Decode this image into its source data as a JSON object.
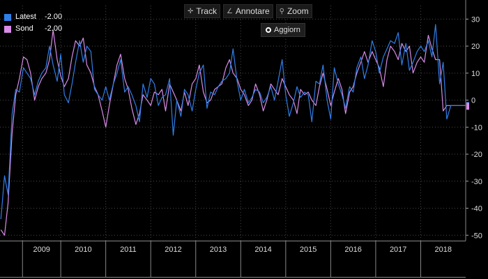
{
  "legend": {
    "items": [
      {
        "name": "Latest",
        "value": "-2.00",
        "color": "#2f7fe8"
      },
      {
        "name": "Sond",
        "value": "-2.00",
        "color": "#d98ce8"
      }
    ]
  },
  "toolbar": {
    "track_label": "Track",
    "annotate_label": "Annotare",
    "zoom_label": "Zoom",
    "refresh_label": "Aggiorn"
  },
  "chart_data": {
    "type": "line",
    "title": "",
    "xlabel": "",
    "ylabel": "",
    "ylim": [
      -52,
      35
    ],
    "yticks": [
      30,
      20,
      10,
      0,
      -10,
      -20,
      -30,
      -40,
      -50
    ],
    "xlim": [
      2008.65,
      2019.0
    ],
    "year_labels": [
      "2009",
      "2010",
      "2011",
      "2012",
      "2013",
      "2014",
      "2015",
      "2016",
      "2017",
      "2018"
    ],
    "year_boundaries": [
      2009.15,
      2010.0,
      2011.0,
      2012.0,
      2013.0,
      2014.0,
      2015.0,
      2016.0,
      2017.0,
      2018.0
    ],
    "grid": true,
    "series": [
      {
        "name": "Latest",
        "color": "#2f7fe8",
        "x": [
          2008.67,
          2008.75,
          2008.83,
          2008.92,
          2009.0,
          2009.08,
          2009.17,
          2009.25,
          2009.33,
          2009.42,
          2009.5,
          2009.58,
          2009.67,
          2009.75,
          2009.83,
          2009.92,
          2010.0,
          2010.08,
          2010.17,
          2010.25,
          2010.33,
          2010.42,
          2010.5,
          2010.58,
          2010.67,
          2010.75,
          2010.83,
          2010.92,
          2011.0,
          2011.08,
          2011.17,
          2011.25,
          2011.33,
          2011.42,
          2011.5,
          2011.58,
          2011.67,
          2011.75,
          2011.83,
          2011.92,
          2012.0,
          2012.08,
          2012.17,
          2012.25,
          2012.33,
          2012.42,
          2012.5,
          2012.58,
          2012.67,
          2012.75,
          2012.83,
          2012.92,
          2013.0,
          2013.08,
          2013.17,
          2013.25,
          2013.33,
          2013.42,
          2013.5,
          2013.58,
          2013.67,
          2013.75,
          2013.83,
          2013.92,
          2014.0,
          2014.08,
          2014.17,
          2014.25,
          2014.33,
          2014.42,
          2014.5,
          2014.58,
          2014.67,
          2014.75,
          2014.83,
          2014.92,
          2015.0,
          2015.08,
          2015.17,
          2015.25,
          2015.33,
          2015.42,
          2015.5,
          2015.58,
          2015.67,
          2015.75,
          2015.83,
          2015.92,
          2016.0,
          2016.08,
          2016.17,
          2016.25,
          2016.33,
          2016.42,
          2016.5,
          2016.58,
          2016.67,
          2016.75,
          2016.83,
          2016.92,
          2017.0,
          2017.08,
          2017.17,
          2017.25,
          2017.33,
          2017.42,
          2017.5,
          2017.58,
          2017.67,
          2017.75,
          2017.83,
          2017.92,
          2018.0,
          2018.08,
          2018.17,
          2018.25,
          2018.33,
          2018.42,
          2018.5,
          2018.58,
          2018.67,
          2018.75,
          2018.83,
          2018.92,
          2019.0
        ],
        "values": [
          -44,
          -28,
          -35,
          -5,
          4,
          3,
          12,
          10,
          8,
          2,
          7,
          10,
          12,
          20,
          13,
          7,
          17,
          2,
          -1,
          6,
          14,
          22,
          14,
          20,
          18,
          4,
          2,
          0,
          5,
          0,
          6,
          10,
          15,
          3,
          5,
          2,
          -2,
          -8,
          6,
          1,
          8,
          6,
          -2,
          1,
          2,
          8,
          -13,
          0,
          -6,
          4,
          2,
          -4,
          4,
          10,
          13,
          -3,
          3,
          2,
          5,
          7,
          8,
          10,
          19,
          7,
          0,
          4,
          -1,
          1,
          4,
          3,
          -1,
          1,
          5,
          0,
          7,
          15,
          2,
          -6,
          -1,
          5,
          1,
          3,
          2,
          -8,
          7,
          6,
          13,
          0,
          -7,
          12,
          6,
          2,
          -3,
          5,
          3,
          12,
          16,
          8,
          13,
          22,
          18,
          10,
          16,
          19,
          22,
          21,
          25,
          13,
          21,
          11,
          14,
          18,
          20,
          18,
          22,
          16,
          28,
          6,
          14,
          -7,
          -2,
          -2,
          -2,
          -2,
          -2
        ],
        "latest": -2.0
      },
      {
        "name": "Sond",
        "color": "#d98ce8",
        "x": [
          2008.67,
          2008.75,
          2008.83,
          2008.92,
          2009.0,
          2009.08,
          2009.17,
          2009.25,
          2009.33,
          2009.42,
          2009.5,
          2009.58,
          2009.67,
          2009.75,
          2009.83,
          2009.92,
          2010.0,
          2010.08,
          2010.17,
          2010.25,
          2010.33,
          2010.42,
          2010.5,
          2010.58,
          2010.67,
          2010.75,
          2010.83,
          2010.92,
          2011.0,
          2011.08,
          2011.17,
          2011.25,
          2011.33,
          2011.42,
          2011.5,
          2011.58,
          2011.67,
          2011.75,
          2011.83,
          2011.92,
          2012.0,
          2012.08,
          2012.17,
          2012.25,
          2012.33,
          2012.42,
          2012.5,
          2012.58,
          2012.67,
          2012.75,
          2012.83,
          2012.92,
          2013.0,
          2013.08,
          2013.17,
          2013.25,
          2013.33,
          2013.42,
          2013.5,
          2013.58,
          2013.67,
          2013.75,
          2013.83,
          2013.92,
          2014.0,
          2014.08,
          2014.17,
          2014.25,
          2014.33,
          2014.42,
          2014.5,
          2014.58,
          2014.67,
          2014.75,
          2014.83,
          2014.92,
          2015.0,
          2015.08,
          2015.17,
          2015.25,
          2015.33,
          2015.42,
          2015.5,
          2015.58,
          2015.67,
          2015.75,
          2015.83,
          2015.92,
          2016.0,
          2016.08,
          2016.17,
          2016.25,
          2016.33,
          2016.42,
          2016.5,
          2016.58,
          2016.67,
          2016.75,
          2016.83,
          2016.92,
          2017.0,
          2017.08,
          2017.17,
          2017.25,
          2017.33,
          2017.42,
          2017.5,
          2017.58,
          2017.67,
          2017.75,
          2017.83,
          2017.92,
          2018.0,
          2018.08,
          2018.17,
          2018.25,
          2018.33,
          2018.42,
          2018.5,
          2018.58,
          2018.67,
          2018.75,
          2018.83,
          2018.92,
          2019.0
        ],
        "values": [
          -48,
          -50,
          -38,
          -12,
          2,
          8,
          16,
          15,
          10,
          0,
          5,
          8,
          10,
          15,
          26,
          15,
          9,
          5,
          8,
          16,
          22,
          20,
          23,
          13,
          10,
          5,
          2,
          -4,
          -10,
          -2,
          6,
          13,
          17,
          8,
          4,
          -3,
          -9,
          -5,
          2,
          0,
          -2,
          3,
          2,
          4,
          -4,
          6,
          3,
          0,
          -4,
          3,
          -2,
          6,
          8,
          13,
          3,
          -1,
          0,
          4,
          5,
          6,
          12,
          15,
          10,
          8,
          4,
          2,
          -2,
          0,
          6,
          2,
          -4,
          0,
          6,
          4,
          2,
          8,
          5,
          2,
          0,
          -5,
          4,
          2,
          3,
          0,
          -2,
          5,
          10,
          4,
          -2,
          3,
          8,
          4,
          -5,
          3,
          5,
          10,
          14,
          18,
          14,
          18,
          15,
          12,
          5,
          15,
          20,
          18,
          15,
          21,
          18,
          20,
          10,
          14,
          16,
          14,
          24,
          19,
          15,
          15,
          -4,
          -2,
          -2,
          -2,
          -2,
          -2,
          -2
        ],
        "latest": -2.0
      }
    ]
  }
}
